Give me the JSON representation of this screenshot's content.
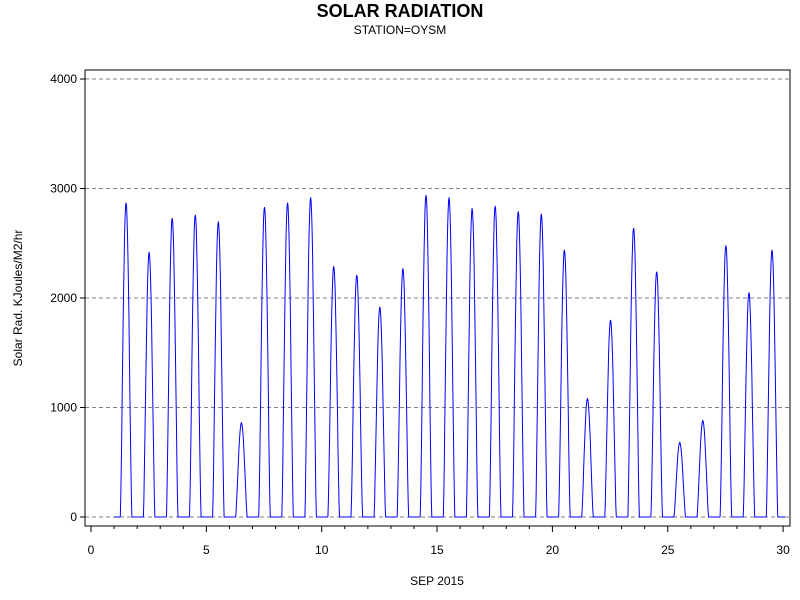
{
  "chart_data": {
    "type": "line",
    "title": "SOLAR RADIATION",
    "subtitle": "STATION=OYSM",
    "xlabel": "SEP 2015",
    "ylabel": "Solar Rad. KJoules/M2/hr",
    "xlim": [
      0,
      30.3
    ],
    "ylim": [
      -80,
      4080
    ],
    "xticks": [
      0,
      5,
      10,
      15,
      20,
      25,
      30
    ],
    "yticks": [
      0,
      1000,
      2000,
      3000,
      4000
    ],
    "grid": "horizontal dashed",
    "series_color": "#0000ff",
    "daily_peaks": [
      {
        "day": 1,
        "peak": 2870
      },
      {
        "day": 2,
        "peak": 2420
      },
      {
        "day": 3,
        "peak": 2730
      },
      {
        "day": 4,
        "peak": 2760
      },
      {
        "day": 5,
        "peak": 2700
      },
      {
        "day": 6,
        "peak": 860
      },
      {
        "day": 7,
        "peak": 2830
      },
      {
        "day": 8,
        "peak": 2870
      },
      {
        "day": 9,
        "peak": 2920
      },
      {
        "day": 10,
        "peak": 2290
      },
      {
        "day": 11,
        "peak": 2210
      },
      {
        "day": 12,
        "peak": 1920
      },
      {
        "day": 13,
        "peak": 2270
      },
      {
        "day": 14,
        "peak": 2940
      },
      {
        "day": 15,
        "peak": 2920
      },
      {
        "day": 16,
        "peak": 2820
      },
      {
        "day": 17,
        "peak": 2840
      },
      {
        "day": 18,
        "peak": 2790
      },
      {
        "day": 19,
        "peak": 2770
      },
      {
        "day": 20,
        "peak": 2440
      },
      {
        "day": 21,
        "peak": 1080
      },
      {
        "day": 22,
        "peak": 1800
      },
      {
        "day": 23,
        "peak": 2640
      },
      {
        "day": 24,
        "peak": 2240
      },
      {
        "day": 25,
        "peak": 680
      },
      {
        "day": 26,
        "peak": 880
      },
      {
        "day": 27,
        "peak": 2480
      },
      {
        "day": 28,
        "peak": 2050
      },
      {
        "day": 29,
        "peak": 2440
      }
    ]
  }
}
